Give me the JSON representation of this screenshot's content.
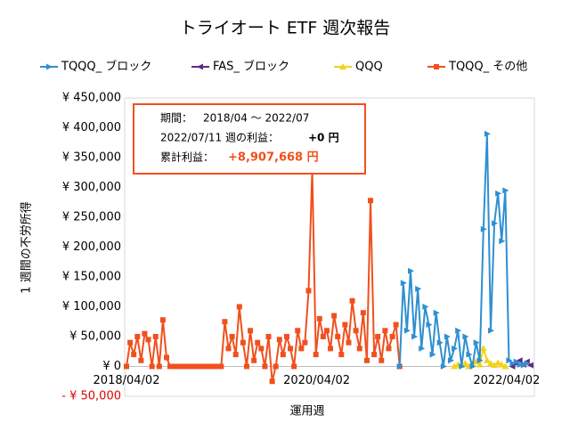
{
  "chart_data": {
    "type": "line",
    "title": "トライオート ETF 週次報告",
    "x_label": "運用週",
    "y_label": "1 週間の不労所得",
    "xlim": [
      "2018/04/02",
      "2022/07/11"
    ],
    "xticks": [
      "2018/04/02",
      "2020/04/02",
      "2022/04/02"
    ],
    "ylim": [
      -50000,
      450000
    ],
    "yticks": [
      {
        "value": -50000,
        "label": "- ¥ 50,000"
      },
      {
        "value": 0,
        "label": "¥ 0"
      },
      {
        "value": 50000,
        "label": "¥ 50,000"
      },
      {
        "value": 100000,
        "label": "¥ 100,000"
      },
      {
        "value": 150000,
        "label": "¥ 150,000"
      },
      {
        "value": 200000,
        "label": "¥ 200,000"
      },
      {
        "value": 250000,
        "label": "¥ 250,000"
      },
      {
        "value": 300000,
        "label": "¥ 300,000"
      },
      {
        "value": 350000,
        "label": "¥ 350,000"
      },
      {
        "value": 400000,
        "label": "¥ 400,000"
      },
      {
        "value": 450000,
        "label": "¥ 450,000"
      }
    ],
    "grid": false,
    "legend_position": "top",
    "annotation": {
      "period_label": "期間：",
      "period": "2018/04 ～ 2022/07",
      "week_label": "2022/07/11 週の利益：",
      "week_profit": "+0 円",
      "total_label": "累計利益：",
      "total_profit": "+8,907,668 円"
    },
    "series": [
      {
        "name": "TQQQ_ ブロック",
        "color": "#2e8fd0",
        "marker": "triangle-right",
        "x": [
          "2021/02/15",
          "2021/03/01",
          "2021/03/15",
          "2021/03/29",
          "2021/04/12",
          "2021/04/26",
          "2021/05/10",
          "2021/05/24",
          "2021/06/07",
          "2021/06/21",
          "2021/07/05",
          "2021/07/19",
          "2021/08/02",
          "2021/08/16",
          "2021/08/30",
          "2021/09/13",
          "2021/09/27",
          "2021/10/11",
          "2021/10/25",
          "2021/11/08",
          "2021/11/22",
          "2021/12/06",
          "2021/12/20",
          "2022/01/03",
          "2022/01/17",
          "2022/01/31",
          "2022/02/14",
          "2022/02/28",
          "2022/03/14",
          "2022/03/28",
          "2022/04/11",
          "2022/04/25",
          "2022/05/09",
          "2022/05/23",
          "2022/06/06",
          "2022/06/20"
        ],
        "values": [
          0,
          140000,
          60000,
          160000,
          50000,
          130000,
          30000,
          100000,
          70000,
          20000,
          90000,
          40000,
          0,
          50000,
          10000,
          30000,
          60000,
          0,
          50000,
          20000,
          0,
          40000,
          10000,
          230000,
          390000,
          60000,
          240000,
          290000,
          210000,
          295000,
          10000,
          5000,
          8000,
          3000,
          2000,
          5000
        ]
      },
      {
        "name": "FAS_ ブロック",
        "color": "#5b2c83",
        "marker": "triangle-left",
        "x": [
          "2022/04/25",
          "2022/05/09",
          "2022/05/23",
          "2022/06/06",
          "2022/06/20",
          "2022/07/04"
        ],
        "values": [
          0,
          5000,
          10000,
          3000,
          8000,
          2000
        ]
      },
      {
        "name": "QQQ",
        "color": "#f2d31a",
        "marker": "triangle-up",
        "x": [
          "2021/09/13",
          "2021/09/27",
          "2021/10/11",
          "2021/10/25",
          "2021/11/08",
          "2021/11/22",
          "2021/12/06",
          "2021/12/20",
          "2022/01/03",
          "2022/01/17",
          "2022/01/31",
          "2022/02/14",
          "2022/02/28",
          "2022/03/14",
          "2022/03/28"
        ],
        "values": [
          0,
          3000,
          2000,
          5000,
          0,
          4000,
          8000,
          3000,
          30000,
          10000,
          5000,
          2000,
          6000,
          3000,
          0
        ]
      },
      {
        "name": "TQQQ_ その他",
        "color": "#f0501e",
        "marker": "square",
        "x": [
          "2018/04/02",
          "2018/04/16",
          "2018/04/30",
          "2018/05/14",
          "2018/05/28",
          "2018/06/11",
          "2018/06/25",
          "2018/07/09",
          "2018/07/23",
          "2018/08/06",
          "2018/08/20",
          "2018/09/03",
          "2018/09/17",
          "2018/10/01",
          "2018/10/15",
          "2018/10/29",
          "2018/11/12",
          "2018/11/26",
          "2018/12/10",
          "2018/12/24",
          "2019/01/07",
          "2019/01/21",
          "2019/02/04",
          "2019/02/18",
          "2019/03/04",
          "2019/03/18",
          "2019/04/01",
          "2019/04/15",
          "2019/04/29",
          "2019/05/13",
          "2019/05/27",
          "2019/06/10",
          "2019/06/24",
          "2019/07/08",
          "2019/07/22",
          "2019/08/05",
          "2019/08/19",
          "2019/09/02",
          "2019/09/16",
          "2019/09/30",
          "2019/10/14",
          "2019/10/28",
          "2019/11/11",
          "2019/11/25",
          "2019/12/09",
          "2019/12/23",
          "2020/01/06",
          "2020/01/20",
          "2020/02/03",
          "2020/02/17",
          "2020/03/02",
          "2020/03/16",
          "2020/03/30",
          "2020/04/13",
          "2020/04/27",
          "2020/05/11",
          "2020/05/25",
          "2020/06/08",
          "2020/06/22",
          "2020/07/06",
          "2020/07/20",
          "2020/08/03",
          "2020/08/17",
          "2020/08/31",
          "2020/09/14",
          "2020/09/28",
          "2020/10/12",
          "2020/10/26",
          "2020/11/09",
          "2020/11/23",
          "2020/12/07",
          "2020/12/21",
          "2021/01/04",
          "2021/01/18",
          "2021/02/01",
          "2021/02/15"
        ],
        "values": [
          0,
          40000,
          20000,
          50000,
          10000,
          55000,
          45000,
          0,
          50000,
          0,
          78000,
          15000,
          0,
          0,
          0,
          0,
          0,
          0,
          0,
          0,
          0,
          0,
          0,
          0,
          0,
          0,
          0,
          75000,
          30000,
          50000,
          20000,
          100000,
          40000,
          0,
          60000,
          10000,
          40000,
          30000,
          0,
          50000,
          -25000,
          0,
          45000,
          20000,
          50000,
          30000,
          0,
          60000,
          30000,
          40000,
          127000,
          330000,
          20000,
          80000,
          50000,
          60000,
          30000,
          85000,
          50000,
          20000,
          70000,
          40000,
          110000,
          60000,
          30000,
          90000,
          10000,
          278000,
          20000,
          50000,
          10000,
          60000,
          30000,
          50000,
          70000,
          0
        ]
      }
    ]
  }
}
